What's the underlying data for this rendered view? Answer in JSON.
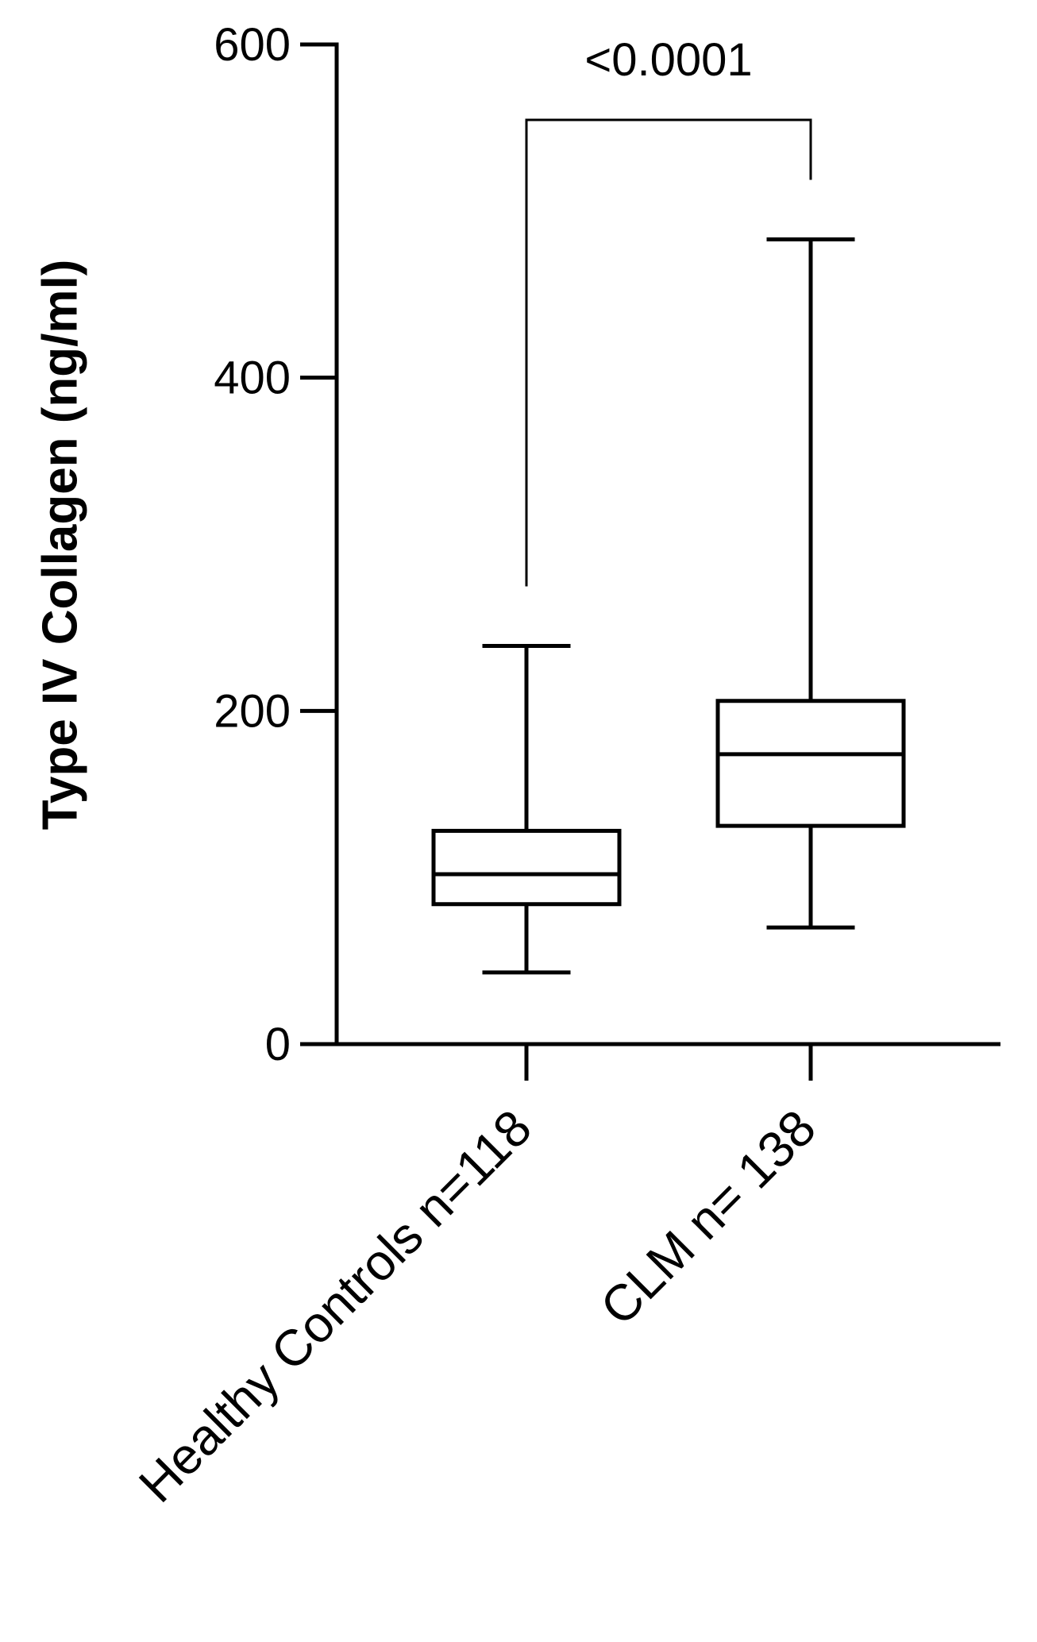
{
  "chart_data": {
    "type": "box",
    "ylabel": "Type IV Collagen (ng/ml)",
    "categories": [
      "Healthy Controls n=118",
      "CLM n= 138"
    ],
    "boxes": [
      {
        "min": 43,
        "q1": 84,
        "median": 102,
        "q3": 128,
        "max": 239
      },
      {
        "min": 70,
        "q1": 131,
        "median": 174,
        "q3": 206,
        "max": 483
      }
    ],
    "color": "#000000",
    "annotation": "<0.0001",
    "ylim": [
      0,
      600
    ],
    "yticks": [
      0,
      200,
      400,
      600
    ]
  }
}
